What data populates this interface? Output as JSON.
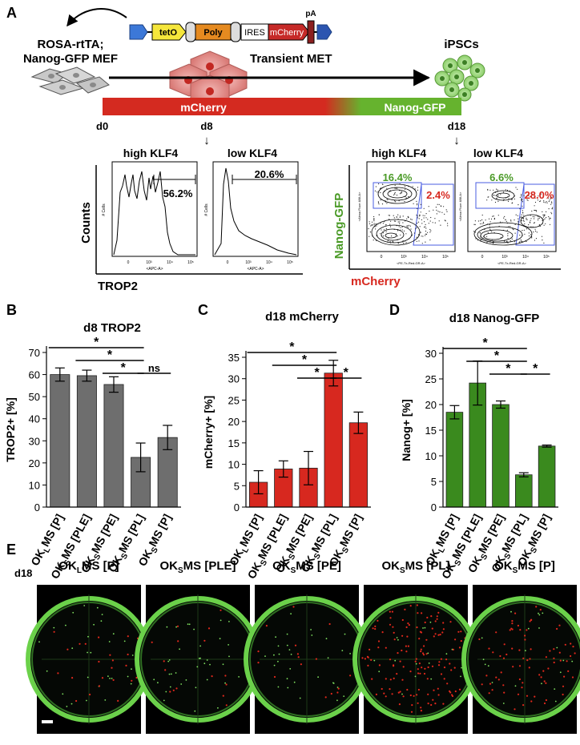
{
  "panels": {
    "A": {
      "letter": "A",
      "cell_label_line1": "ROSA-rtTA;",
      "cell_label_line2": "Nanog-GFP MEF",
      "construct": [
        "tetO",
        "Poly",
        "IRES",
        "mCherry",
        "pA"
      ],
      "transient_met": "Transient MET",
      "ipsc": "iPSCs",
      "bar_mcherry": "mCherry",
      "bar_nanog": "Nanog-GFP",
      "days": [
        "d0",
        "d8",
        "d18"
      ],
      "arrow_glyph": "↓",
      "hist_titles": [
        "high KLF4",
        "low KLF4"
      ],
      "hist_pcts": [
        "56.2%",
        "20.6%"
      ],
      "hist_ylabel": "Counts",
      "hist_xlabel": "TROP2",
      "hist_small_ylabel": "# Cells",
      "hist_small_xlabel": "<APC-A>",
      "hist_ticks": [
        "0",
        "10³",
        "10⁴",
        "10⁵"
      ],
      "hist_ticks_left": [
        "0",
        "10²",
        "10³",
        "10⁴",
        "10⁵"
      ],
      "facs_titles": [
        "high KLF4",
        "low KLF4"
      ],
      "facs_green_pcts": [
        "16.4%",
        "6.6%"
      ],
      "facs_red_pcts": [
        "2.4%",
        "28.0%"
      ],
      "facs_ylabel": "Nanog-GFP",
      "facs_xlabel": "mCherry",
      "facs_small_ylabel": "<Alexa Fluor 488-A>",
      "facs_small_xlabel": "<PE-Tx-Red-GR-A>",
      "facs_ticks": [
        "0",
        "10³",
        "10⁴",
        "10⁵"
      ],
      "facs_ticks_y": [
        "10⁵",
        "10⁴",
        "10³",
        "0"
      ]
    },
    "B": {
      "letter": "B"
    },
    "C": {
      "letter": "C"
    },
    "D": {
      "letter": "D"
    },
    "E": {
      "letter": "E",
      "day": "d18",
      "titles": [
        "OKLMS [P]",
        "OKSMS [PLE]",
        "OKSMS [PE]",
        "OKSMS [PL]",
        "OKSMS [P]"
      ],
      "title_parts": [
        {
          "pre": "OK",
          "sub": "L",
          "post": "MS [P]"
        },
        {
          "pre": "OK",
          "sub": "S",
          "post": "MS [PLE]"
        },
        {
          "pre": "OK",
          "sub": "S",
          "post": "MS [PE]"
        },
        {
          "pre": "OK",
          "sub": "S",
          "post": "MS [PL]"
        },
        {
          "pre": "OK",
          "sub": "S",
          "post": "MS [P]"
        }
      ],
      "red_density": [
        0.15,
        0.1,
        0.1,
        0.9,
        0.5
      ],
      "green_density": [
        0.45,
        0.55,
        0.45,
        0.25,
        0.3
      ]
    }
  },
  "chart_data": [
    {
      "type": "bar",
      "panel": "B",
      "title": "d8 TROP2",
      "ylabel": "TROP2+ [%]",
      "categories": [
        "OKLMS [P]",
        "OKSMS [PLE]",
        "OKSMS [PE]",
        "OKSMS [PL]",
        "OKSMS [P]"
      ],
      "category_parts": [
        {
          "pre": "OK",
          "sub": "L",
          "post": "MS [P]"
        },
        {
          "pre": "OK",
          "sub": "S",
          "post": "MS [PLE]"
        },
        {
          "pre": "OK",
          "sub": "S",
          "post": "MS [PE]"
        },
        {
          "pre": "OK",
          "sub": "S",
          "post": "MS [PL]"
        },
        {
          "pre": "OK",
          "sub": "S",
          "post": "MS [P]"
        }
      ],
      "values": [
        60,
        59.5,
        55.5,
        22.5,
        31.5
      ],
      "errors": [
        3,
        2.5,
        3.5,
        6.5,
        5.5
      ],
      "ylim": [
        0,
        70
      ],
      "yticks": [
        0,
        10,
        20,
        30,
        40,
        50,
        60,
        70
      ],
      "color": "#6e6e6e",
      "significance": [
        {
          "from": 0,
          "to": 3,
          "label": "*"
        },
        {
          "from": 1,
          "to": 3,
          "label": "*"
        },
        {
          "from": 2,
          "to": 3,
          "label": "*"
        },
        {
          "from": 3,
          "to": 4,
          "label": "ns"
        }
      ]
    },
    {
      "type": "bar",
      "panel": "C",
      "title": "d18 mCherry",
      "ylabel": "mCherry+ [%]",
      "categories": [
        "OKLMS [P]",
        "OKSMS [PLE]",
        "OKSMS [PE]",
        "OKSMS [PL]",
        "OKSMS [P]"
      ],
      "category_parts": [
        {
          "pre": "OK",
          "sub": "L",
          "post": "MS [P]"
        },
        {
          "pre": "OK",
          "sub": "S",
          "post": "MS [PLE]"
        },
        {
          "pre": "OK",
          "sub": "S",
          "post": "MS [PE]"
        },
        {
          "pre": "OK",
          "sub": "S",
          "post": "MS [PL]"
        },
        {
          "pre": "OK",
          "sub": "S",
          "post": "MS [P]"
        }
      ],
      "values": [
        5.8,
        8.9,
        9.1,
        31.3,
        19.7
      ],
      "errors": [
        2.7,
        1.9,
        3.9,
        3,
        2.5
      ],
      "ylim": [
        0,
        35
      ],
      "yticks": [
        0,
        5,
        10,
        15,
        20,
        25,
        30,
        35
      ],
      "color": "#d7281f",
      "significance": [
        {
          "from": 0,
          "to": 3,
          "label": "*"
        },
        {
          "from": 1,
          "to": 3,
          "label": "*"
        },
        {
          "from": 2,
          "to": 3,
          "label": "*"
        },
        {
          "from": 3,
          "to": 4,
          "label": "*"
        }
      ]
    },
    {
      "type": "bar",
      "panel": "D",
      "title": "d18 Nanog-GFP",
      "ylabel": "Nanog+ [%]",
      "categories": [
        "OKLMS [P]",
        "OKSMS [PLE]",
        "OKSMS [PE]",
        "OKSMS [PL]",
        "OKSMS [P]"
      ],
      "category_parts": [
        {
          "pre": "OK",
          "sub": "L",
          "post": "MS [P]"
        },
        {
          "pre": "OK",
          "sub": "S",
          "post": "MS [PLE]"
        },
        {
          "pre": "OK",
          "sub": "S",
          "post": "MS [PE]"
        },
        {
          "pre": "OK",
          "sub": "S",
          "post": "MS [PL]"
        },
        {
          "pre": "OK",
          "sub": "S",
          "post": "MS [P]"
        }
      ],
      "values": [
        18.5,
        24.2,
        20,
        6.3,
        11.9
      ],
      "errors": [
        1.3,
        4.3,
        0.7,
        0.4,
        0.2
      ],
      "ylim": [
        0,
        30
      ],
      "yticks": [
        0,
        5,
        10,
        15,
        20,
        25,
        30
      ],
      "color": "#3a8a1e",
      "significance": [
        {
          "from": 0,
          "to": 3,
          "label": "*"
        },
        {
          "from": 1,
          "to": 3,
          "label": "*"
        },
        {
          "from": 2,
          "to": 3,
          "label": "*"
        },
        {
          "from": 3,
          "to": 4,
          "label": "*"
        }
      ]
    }
  ]
}
